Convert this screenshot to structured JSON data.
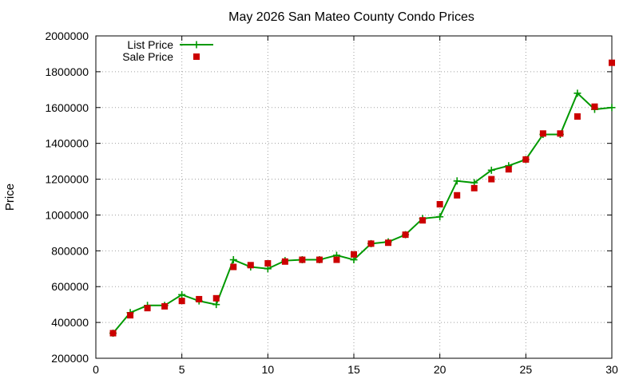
{
  "chart_data": {
    "type": "line",
    "title": "May 2026 San Mateo County Condo Prices",
    "xlabel": "",
    "ylabel": "Price",
    "xlim": [
      0,
      30
    ],
    "ylim": [
      200000,
      2000000
    ],
    "x_ticks": [
      0,
      5,
      10,
      15,
      20,
      25,
      30
    ],
    "y_ticks": [
      200000,
      400000,
      600000,
      800000,
      1000000,
      1200000,
      1400000,
      1600000,
      1800000,
      2000000
    ],
    "grid": true,
    "legend_position": "top-left",
    "series": [
      {
        "name": "List Price",
        "style": "line+cross",
        "color": "#009900",
        "x": [
          1,
          2,
          3,
          4,
          5,
          6,
          7,
          8,
          9,
          10,
          11,
          12,
          13,
          14,
          15,
          16,
          17,
          18,
          19,
          20,
          21,
          22,
          23,
          24,
          25,
          26,
          27,
          28,
          29,
          30
        ],
        "values": [
          340000,
          455000,
          495000,
          495000,
          555000,
          520000,
          500000,
          750000,
          710000,
          700000,
          745000,
          750000,
          750000,
          775000,
          750000,
          840000,
          850000,
          890000,
          980000,
          990000,
          1190000,
          1180000,
          1250000,
          1275000,
          1310000,
          1450000,
          1450000,
          1680000,
          1590000,
          1600000
        ]
      },
      {
        "name": "Sale Price",
        "style": "square",
        "color": "#cc0000",
        "x": [
          1,
          2,
          3,
          4,
          5,
          6,
          7,
          8,
          9,
          10,
          11,
          12,
          13,
          14,
          15,
          16,
          17,
          18,
          19,
          20,
          21,
          22,
          23,
          24,
          25,
          26,
          27,
          28,
          29,
          30
        ],
        "values": [
          340000,
          440000,
          480000,
          490000,
          520000,
          530000,
          535000,
          710000,
          720000,
          730000,
          740000,
          750000,
          750000,
          750000,
          780000,
          840000,
          845000,
          890000,
          970000,
          1060000,
          1110000,
          1150000,
          1200000,
          1255000,
          1310000,
          1455000,
          1455000,
          1550000,
          1605000,
          1850000
        ]
      }
    ]
  }
}
